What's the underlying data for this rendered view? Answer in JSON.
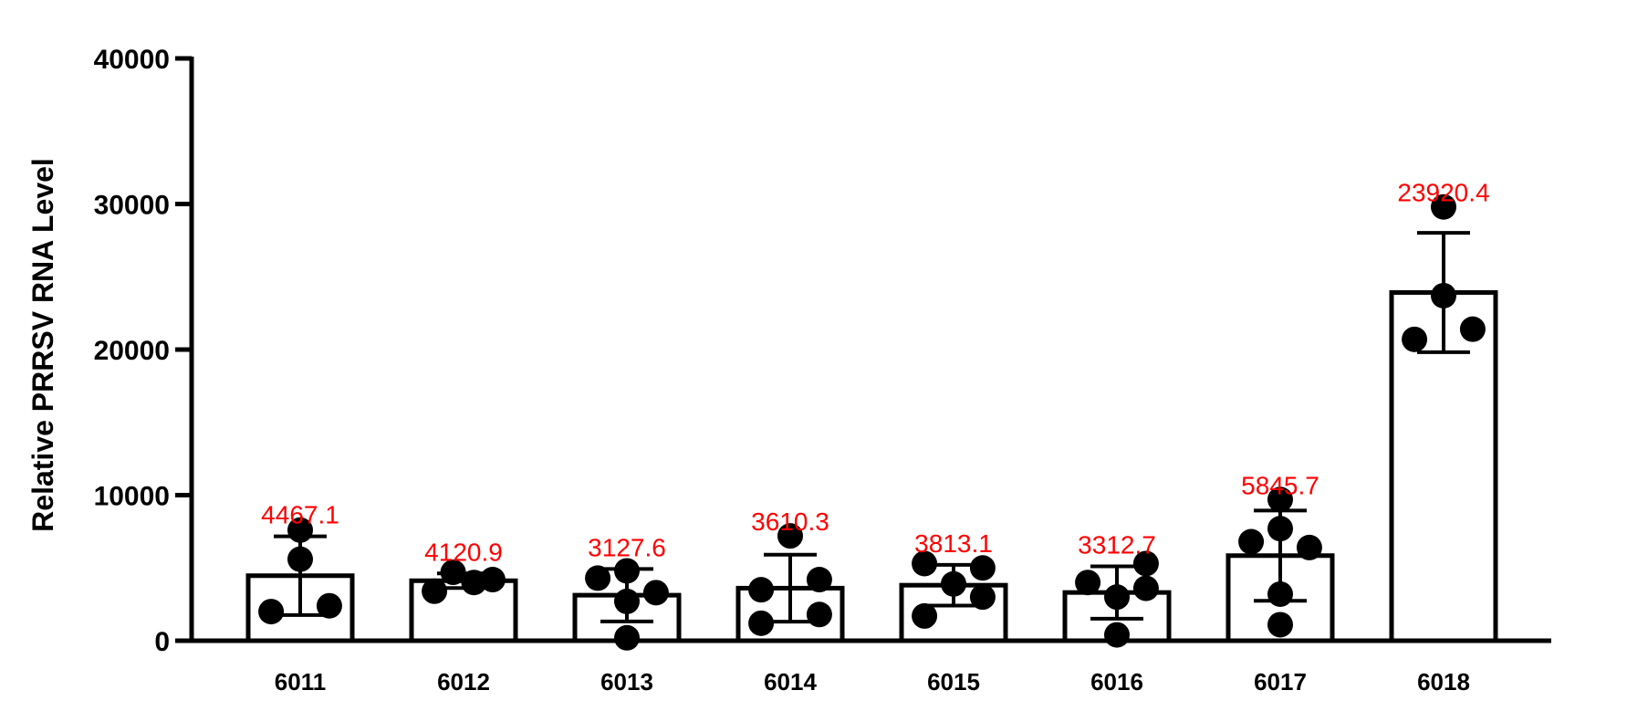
{
  "chart_data": {
    "type": "bar",
    "title": "",
    "xlabel": "",
    "ylabel": "Relative PRRSV RNA Level",
    "ylim": [
      0,
      40000
    ],
    "yticks": [
      "0",
      "10000",
      "20000",
      "30000",
      "40000"
    ],
    "categories": [
      "6011",
      "6012",
      "6013",
      "6014",
      "6015",
      "6016",
      "6017",
      "6018"
    ],
    "values": [
      4467.1,
      4120.9,
      3127.6,
      3610.3,
      3813.1,
      3312.7,
      5845.7,
      23920.4
    ],
    "value_labels": [
      "4467.1",
      "4120.9",
      "3127.6",
      "3610.3",
      "3813.1",
      "3312.7",
      "5845.7",
      "23920.4"
    ],
    "error": [
      2700,
      500,
      1800,
      2300,
      1400,
      1800,
      3100,
      4100
    ],
    "points": [
      [
        [
          -0.28,
          2000
        ],
        [
          0.0,
          5600
        ],
        [
          0.28,
          2400
        ],
        [
          0.0,
          7600
        ]
      ],
      [
        [
          -0.28,
          3400
        ],
        [
          -0.1,
          4700
        ],
        [
          0.1,
          4000
        ],
        [
          0.28,
          4200
        ]
      ],
      [
        [
          -0.28,
          4300
        ],
        [
          0.0,
          4800
        ],
        [
          0.0,
          2700
        ],
        [
          0.28,
          3300
        ],
        [
          0.0,
          200
        ]
      ],
      [
        [
          -0.28,
          3500
        ],
        [
          -0.28,
          1200
        ],
        [
          0.0,
          7200
        ],
        [
          0.28,
          4200
        ],
        [
          0.28,
          1800
        ]
      ],
      [
        [
          -0.28,
          5300
        ],
        [
          0.0,
          3900
        ],
        [
          0.28,
          5000
        ],
        [
          0.28,
          3000
        ],
        [
          -0.28,
          1700
        ]
      ],
      [
        [
          -0.28,
          4000
        ],
        [
          0.0,
          3000
        ],
        [
          0.28,
          5300
        ],
        [
          0.28,
          3600
        ],
        [
          0.0,
          400
        ]
      ],
      [
        [
          -0.28,
          6800
        ],
        [
          0.0,
          9700
        ],
        [
          0.0,
          7700
        ],
        [
          0.28,
          6400
        ],
        [
          0.0,
          3200
        ],
        [
          0.0,
          1100
        ]
      ],
      [
        [
          0.0,
          29800
        ],
        [
          0.0,
          23700
        ],
        [
          -0.28,
          20700
        ],
        [
          0.28,
          21400
        ]
      ]
    ],
    "bar_color": "#ffffff",
    "bar_edge_color": "#000000",
    "point_color": "#000000",
    "label_color": "#ff0000",
    "grid": false,
    "legend": "none"
  }
}
